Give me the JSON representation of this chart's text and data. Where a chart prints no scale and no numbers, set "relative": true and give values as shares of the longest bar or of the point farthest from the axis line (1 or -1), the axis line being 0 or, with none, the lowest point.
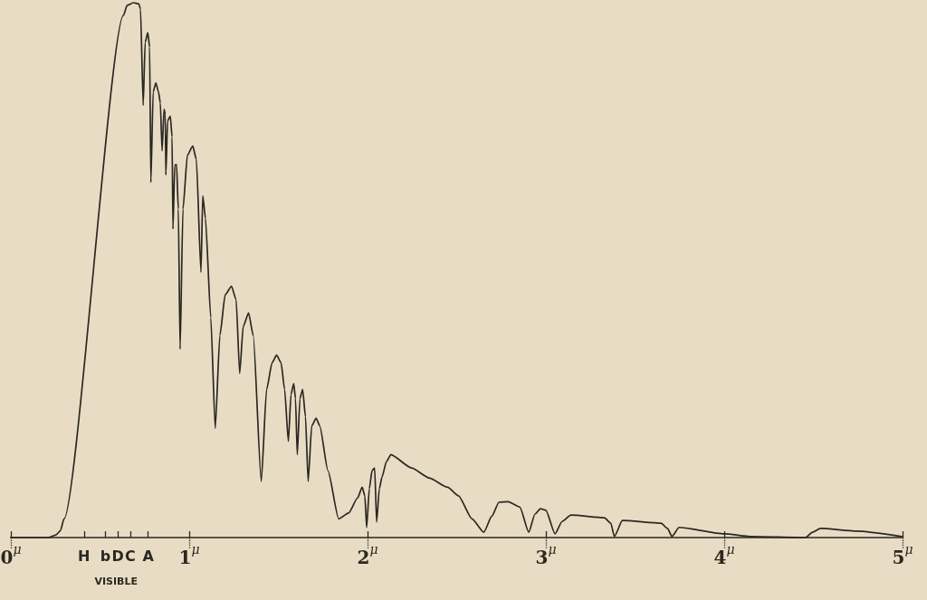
{
  "chart_data": {
    "type": "line",
    "relative": true,
    "color": "#2b2722",
    "x": [
      0,
      0.212,
      0.253,
      0.278,
      0.298,
      0.631,
      0.652,
      0.687,
      0.717,
      0.727,
      0.742,
      0.753,
      0.768,
      0.778,
      0.785,
      0.798,
      0.813,
      0.828,
      0.838,
      0.848,
      0.859,
      0.866,
      0.869,
      0.879,
      0.894,
      0.904,
      0.909,
      0.919,
      0.929,
      0.939,
      0.949,
      0.965,
      0.99,
      1.02,
      1.04,
      1.066,
      1.076,
      1.091,
      1.121,
      1.146,
      1.172,
      1.202,
      1.237,
      1.263,
      1.283,
      1.303,
      1.333,
      1.359,
      1.404,
      1.434,
      1.465,
      1.49,
      1.515,
      1.535,
      1.556,
      1.571,
      1.586,
      1.596,
      1.606,
      1.621,
      1.636,
      1.652,
      1.667,
      1.687,
      1.712,
      1.732,
      1.778,
      1.838,
      1.894,
      1.944,
      1.97,
      1.985,
      1.995,
      2.01,
      2.025,
      2.04,
      2.051,
      2.066,
      2.081,
      2.106,
      2.131,
      2.247,
      2.348,
      2.449,
      2.51,
      2.586,
      2.652,
      2.697,
      2.737,
      2.788,
      2.854,
      2.904,
      2.939,
      2.97,
      3.0,
      3.051,
      3.091,
      3.141,
      3.328,
      3.364,
      3.384,
      3.429,
      3.646,
      3.682,
      3.707,
      3.747,
      4.0,
      4.152,
      4.455,
      4.495,
      4.54,
      4.742,
      4.995
    ],
    "values": [
      0,
      0,
      0.005,
      0.013,
      0.035,
      0.976,
      0.995,
      1.0,
      0.998,
      0.988,
      0.808,
      0.926,
      0.944,
      0.917,
      0.664,
      0.833,
      0.85,
      0.833,
      0.813,
      0.723,
      0.801,
      0.791,
      0.678,
      0.779,
      0.788,
      0.749,
      0.577,
      0.696,
      0.698,
      0.614,
      0.352,
      0.614,
      0.715,
      0.732,
      0.707,
      0.496,
      0.639,
      0.597,
      0.411,
      0.204,
      0.378,
      0.454,
      0.47,
      0.445,
      0.307,
      0.395,
      0.42,
      0.378,
      0.105,
      0.277,
      0.327,
      0.341,
      0.327,
      0.277,
      0.18,
      0.268,
      0.288,
      0.26,
      0.155,
      0.26,
      0.277,
      0.226,
      0.105,
      0.209,
      0.223,
      0.209,
      0.125,
      0.035,
      0.046,
      0.074,
      0.094,
      0.078,
      0.019,
      0.091,
      0.125,
      0.13,
      0.029,
      0.091,
      0.113,
      0.142,
      0.155,
      0.13,
      0.111,
      0.094,
      0.078,
      0.035,
      0.01,
      0.04,
      0.066,
      0.067,
      0.057,
      0.01,
      0.044,
      0.054,
      0.051,
      0.007,
      0.03,
      0.042,
      0.037,
      0.027,
      0.002,
      0.032,
      0.027,
      0.017,
      0.002,
      0.019,
      0.007,
      0.002,
      0,
      0.01,
      0.017,
      0.012,
      0.002
    ],
    "xlim": [
      0,
      5
    ],
    "xticks": [
      {
        "value": 0,
        "label": "0$^{μ}$"
      },
      {
        "value": 0.41,
        "label": "H"
      },
      {
        "value": 0.53,
        "label": "b"
      },
      {
        "value": 0.6,
        "label": "D"
      },
      {
        "value": 0.67,
        "label": "C"
      },
      {
        "value": 0.77,
        "label": "A"
      },
      {
        "value": 1,
        "label": "1$^{μ}$"
      },
      {
        "value": 2,
        "label": "2$^{μ}$"
      },
      {
        "value": 3,
        "label": "3$^{μ}$"
      },
      {
        "value": 4,
        "label": "4$^{μ}$"
      },
      {
        "value": 5,
        "label": "5$^{μ}$"
      }
    ],
    "annotations": [
      "VISIBLE"
    ]
  }
}
